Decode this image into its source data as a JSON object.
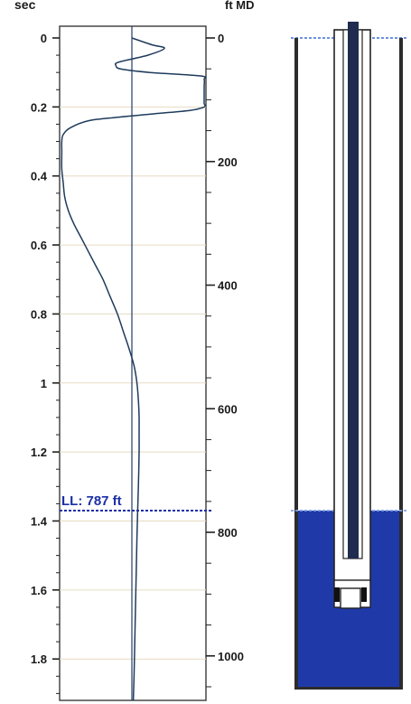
{
  "header": {
    "left_unit": "sec",
    "right_unit": "ft MD"
  },
  "liquid_level": {
    "label": "LL: 787 ft",
    "depth_ft": 787,
    "time_sec": 1.37
  },
  "colors": {
    "trace": "#1f3b5c",
    "liquid_level": "#1b2fa8",
    "fluid": "#1f3aa8",
    "tubing": "#1f2b4f",
    "grid": "#e7dcc3"
  },
  "chart_data": {
    "type": "line",
    "title": "",
    "xlabel": "",
    "ylabel": "sec",
    "y2label": "ft MD",
    "ylim": [
      0,
      1.92
    ],
    "y2lim": [
      0,
      1072
    ],
    "y_ticks": [
      0,
      0.2,
      0.4,
      0.6,
      0.8,
      1,
      1.2,
      1.4,
      1.6,
      1.8
    ],
    "y_tick_labels": [
      "0",
      "0.2",
      "0.4",
      "0.6",
      "0.8",
      "1",
      "1.2",
      "1.4",
      "1.6",
      "1.8"
    ],
    "y2_ticks": [
      0,
      200,
      400,
      600,
      800,
      1000
    ],
    "y2_tick_labels": [
      "0",
      "200",
      "400",
      "600",
      "800",
      "1000"
    ],
    "baseline": 0,
    "series": [
      {
        "time_sec": [
          0,
          0.02,
          0.03,
          0.05,
          0.07,
          0.08,
          0.09,
          0.1,
          0.11,
          0.12,
          0.14,
          0.16,
          0.18,
          0.19,
          0.2,
          0.21,
          0.22,
          0.23,
          0.24,
          0.26,
          0.28,
          0.3,
          0.33,
          0.38,
          0.42,
          0.46,
          0.5,
          0.54,
          0.58,
          0.62,
          0.66,
          0.7,
          0.75,
          0.8,
          0.85,
          0.9,
          0.95,
          1.0,
          1.05,
          1.1,
          1.15,
          1.2,
          1.3,
          1.37,
          1.45,
          1.55,
          1.65,
          1.75,
          1.85,
          1.92
        ],
        "amplitude": [
          0,
          0.28,
          0.45,
          0.22,
          -0.18,
          -0.22,
          -0.15,
          0.25,
          0.95,
          1.0,
          1.0,
          1.0,
          1.0,
          1.0,
          1.0,
          0.8,
          0.3,
          -0.2,
          -0.6,
          -0.85,
          -0.95,
          -0.97,
          -0.97,
          -0.97,
          -0.95,
          -0.93,
          -0.88,
          -0.8,
          -0.7,
          -0.6,
          -0.5,
          -0.4,
          -0.3,
          -0.2,
          -0.12,
          -0.04,
          0.03,
          0.07,
          0.09,
          0.1,
          0.1,
          0.1,
          0.09,
          0.08,
          0.07,
          0.06,
          0.05,
          0.04,
          0.03,
          0.02
        ]
      }
    ]
  }
}
